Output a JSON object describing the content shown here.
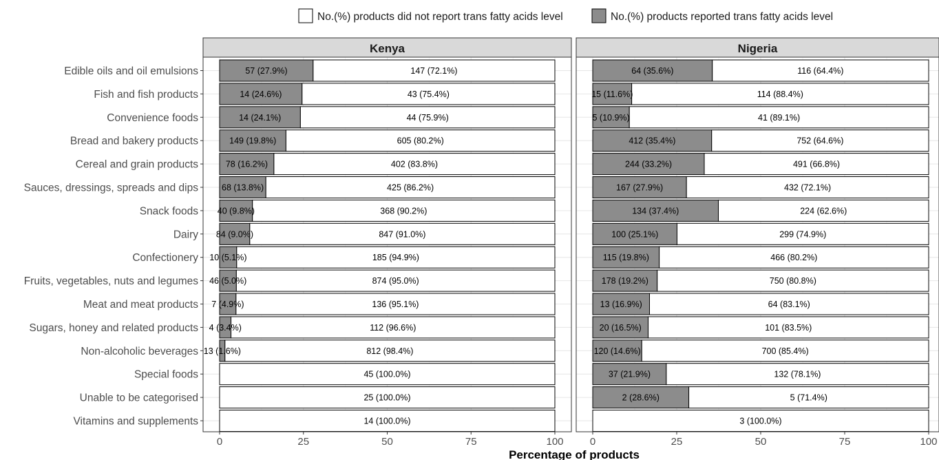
{
  "chart_data": {
    "type": "bar",
    "orientation": "horizontal",
    "stacked": true,
    "xlabel": "Percentage of products",
    "ylabel": "",
    "xlim": [
      0,
      100
    ],
    "xticks": [
      0,
      25,
      50,
      75,
      100
    ],
    "grid": true,
    "legend_position": "top",
    "legend": [
      {
        "key": "not_reported",
        "label": "No.(%) products did not report trans fatty acids level",
        "color": "#ffffff"
      },
      {
        "key": "reported",
        "label": "No.(%) products reported trans fatty acids level",
        "color": "#8c8c8c"
      }
    ],
    "categories": [
      "Edible oils and oil emulsions",
      "Fish and fish products",
      "Convenience foods",
      "Bread and bakery products",
      "Cereal and grain products",
      "Sauces, dressings, spreads and dips",
      "Snack foods",
      "Dairy",
      "Confectionery",
      "Fruits, vegetables, nuts and legumes",
      "Meat and meat products",
      "Sugars, honey and related products",
      "Non-alcoholic beverages",
      "Special foods",
      "Unable to be categorised",
      "Vitamins and supplements"
    ],
    "panels": [
      {
        "name": "Kenya",
        "reported_pct": [
          27.9,
          24.6,
          24.1,
          19.8,
          16.2,
          13.8,
          9.8,
          9.0,
          5.1,
          5.0,
          4.9,
          3.4,
          1.6,
          0,
          0,
          0
        ],
        "reported_labels": [
          "57 (27.9%)",
          "14 (24.6%)",
          "14 (24.1%)",
          "149 (19.8%)",
          "78 (16.2%)",
          "68 (13.8%)",
          "40 (9.8%)",
          "84 (9.0%)",
          "10 (5.1%)",
          "46 (5.0%)",
          "7 (4.9%)",
          "4 (3.4%)",
          "13 (1.6%)",
          "",
          "",
          ""
        ],
        "not_reported_labels": [
          "147 (72.1%)",
          "43 (75.4%)",
          "44 (75.9%)",
          "605 (80.2%)",
          "402 (83.8%)",
          "425 (86.2%)",
          "368 (90.2%)",
          "847 (91.0%)",
          "185 (94.9%)",
          "874 (95.0%)",
          "136 (95.1%)",
          "112 (96.6%)",
          "812 (98.4%)",
          "45 (100.0%)",
          "25 (100.0%)",
          "14 (100.0%)"
        ]
      },
      {
        "name": "Nigeria",
        "reported_pct": [
          35.6,
          11.6,
          10.9,
          35.4,
          33.2,
          27.9,
          37.4,
          25.1,
          19.8,
          19.2,
          16.9,
          16.5,
          14.6,
          21.9,
          28.6,
          0
        ],
        "reported_labels": [
          "64 (35.6%)",
          "15 (11.6%)",
          "5 (10.9%)",
          "412 (35.4%)",
          "244 (33.2%)",
          "167 (27.9%)",
          "134 (37.4%)",
          "100 (25.1%)",
          "115 (19.8%)",
          "178 (19.2%)",
          "13 (16.9%)",
          "20 (16.5%)",
          "120 (14.6%)",
          "37 (21.9%)",
          "2 (28.6%)",
          ""
        ],
        "not_reported_labels": [
          "116 (64.4%)",
          "114 (88.4%)",
          "41 (89.1%)",
          "752 (64.6%)",
          "491 (66.8%)",
          "432 (72.1%)",
          "224 (62.6%)",
          "299 (74.9%)",
          "466 (80.2%)",
          "750 (80.8%)",
          "64 (83.1%)",
          "101 (83.5%)",
          "700 (85.4%)",
          "132 (78.1%)",
          "5 (71.4%)",
          "3 (100.0%)"
        ]
      }
    ]
  }
}
